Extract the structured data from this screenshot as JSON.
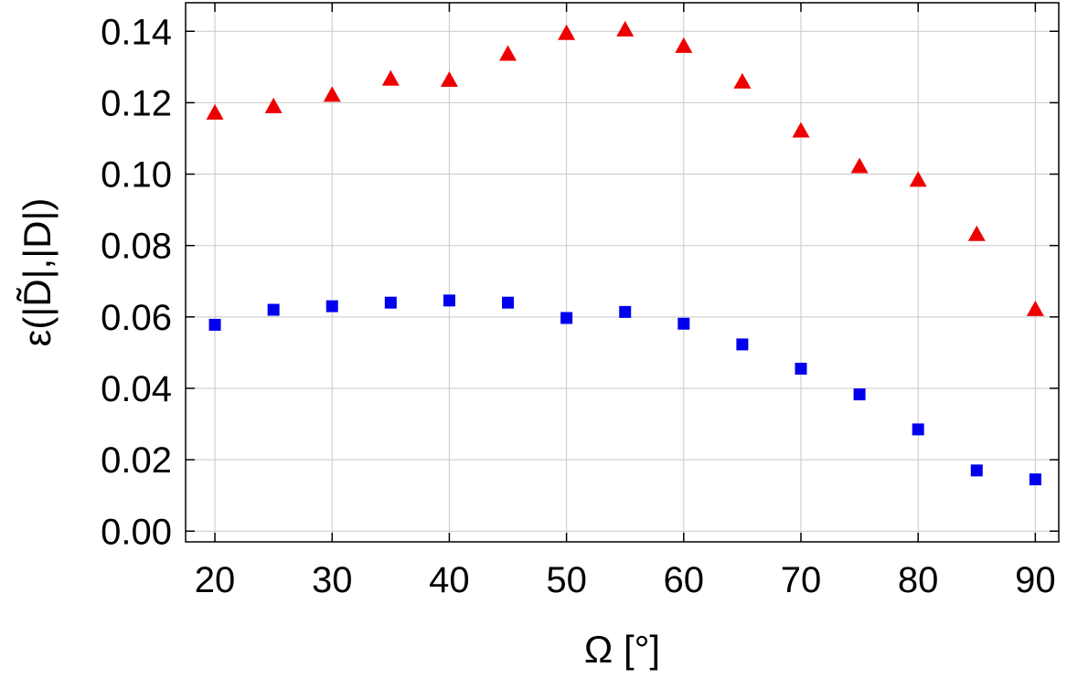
{
  "chart_data": {
    "type": "scatter",
    "title": "",
    "xlabel": "Ω [°]",
    "ylabel": "ε(|D̃|,|D|)",
    "xlim": [
      17.5,
      92
    ],
    "ylim": [
      -0.003,
      0.148
    ],
    "xticks": [
      20,
      30,
      40,
      50,
      60,
      70,
      80,
      90
    ],
    "yticks": [
      0.0,
      0.02,
      0.04,
      0.06,
      0.08,
      0.1,
      0.12,
      0.14
    ],
    "ytick_labels": [
      "0.00",
      "0.02",
      "0.04",
      "0.06",
      "0.08",
      "0.10",
      "0.12",
      "0.14"
    ],
    "grid": true,
    "legend": "none",
    "series": [
      {
        "marker": "triangle",
        "color": "#ee0000",
        "x": [
          20,
          25,
          30,
          35,
          40,
          45,
          50,
          55,
          60,
          65,
          70,
          75,
          80,
          85,
          90
        ],
        "y": [
          0.117,
          0.1188,
          0.122,
          0.1265,
          0.1262,
          0.1335,
          0.1393,
          0.1403,
          0.1357,
          0.1257,
          0.112,
          0.102,
          0.0982,
          0.083,
          0.062
        ]
      },
      {
        "marker": "square",
        "color": "#0000ee",
        "x": [
          20,
          25,
          30,
          35,
          40,
          45,
          50,
          55,
          60,
          65,
          70,
          75,
          80,
          85,
          90
        ],
        "y": [
          0.0578,
          0.062,
          0.063,
          0.064,
          0.0646,
          0.064,
          0.0597,
          0.0614,
          0.0581,
          0.0523,
          0.0455,
          0.0383,
          0.0285,
          0.017,
          0.0145
        ]
      }
    ]
  }
}
